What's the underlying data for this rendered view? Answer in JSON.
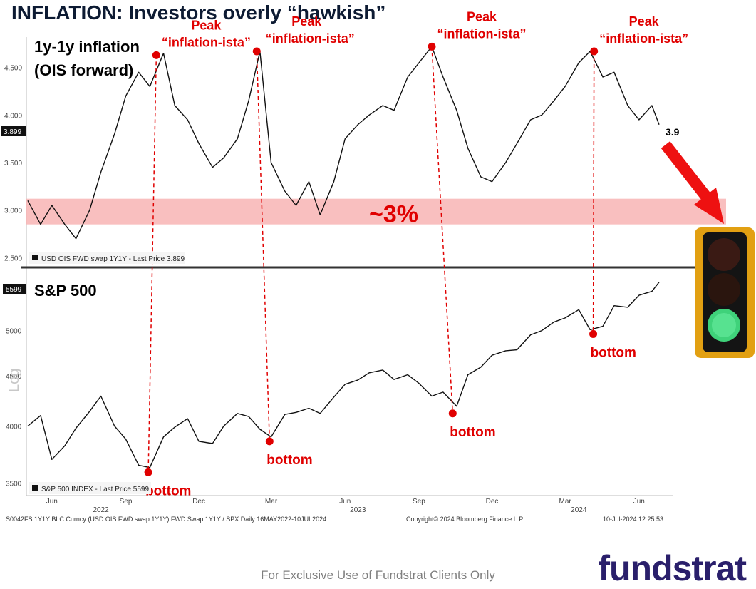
{
  "slide": {
    "title": "INFLATION: Investors overly “hawkish”",
    "footer": "For Exclusive Use of Fundstrat Clients Only",
    "brand": "fundstrat",
    "colors": {
      "accent_red": "#e00000",
      "band_pink": "#f8b4b4",
      "title_navy": "#0d1b33",
      "brand_purple": "#2a1f6b"
    }
  },
  "chart_data": [
    {
      "type": "line",
      "title": "1y-1y inflation",
      "subtitle": "(OIS forward)",
      "legend": "USD OIS FWD swap 1Y1Y - Last Price 3.899",
      "last_price_badge": "3.899",
      "last_value_label": "3.9",
      "band": {
        "from": 2.85,
        "to": 3.12,
        "label": "~3%"
      },
      "ylim": [
        2.45,
        4.82
      ],
      "yticks": [
        "4.500",
        "4.000",
        "3.500",
        "3.000",
        "2.500"
      ],
      "x": [
        "2022-05-16",
        "2022-06-01",
        "2022-06-15",
        "2022-07-01",
        "2022-07-15",
        "2022-08-01",
        "2022-08-15",
        "2022-09-01",
        "2022-09-15",
        "2022-10-01",
        "2022-10-15",
        "2022-11-01",
        "2022-11-15",
        "2022-12-01",
        "2022-12-15",
        "2023-01-01",
        "2023-01-15",
        "2023-02-01",
        "2023-02-15",
        "2023-03-01",
        "2023-03-15",
        "2023-04-01",
        "2023-04-15",
        "2023-05-01",
        "2023-05-15",
        "2023-06-01",
        "2023-06-15",
        "2023-07-01",
        "2023-07-15",
        "2023-08-01",
        "2023-08-15",
        "2023-09-01",
        "2023-09-15",
        "2023-10-01",
        "2023-10-15",
        "2023-11-01",
        "2023-11-15",
        "2023-12-01",
        "2023-12-15",
        "2024-01-01",
        "2024-01-15",
        "2024-02-01",
        "2024-02-15",
        "2024-03-01",
        "2024-03-15",
        "2024-04-01",
        "2024-04-15",
        "2024-05-01",
        "2024-05-15",
        "2024-06-01",
        "2024-06-15",
        "2024-07-01",
        "2024-07-10"
      ],
      "values": [
        3.1,
        2.85,
        3.05,
        2.85,
        2.7,
        3.0,
        3.4,
        3.8,
        4.2,
        4.45,
        4.3,
        4.65,
        4.1,
        3.95,
        3.7,
        3.45,
        3.55,
        3.75,
        4.15,
        4.67,
        3.5,
        3.2,
        3.05,
        3.3,
        2.95,
        3.3,
        3.75,
        3.9,
        4.0,
        4.1,
        4.05,
        4.4,
        4.55,
        4.72,
        4.4,
        4.05,
        3.65,
        3.35,
        3.3,
        3.5,
        3.7,
        3.95,
        4.0,
        4.15,
        4.3,
        4.55,
        4.67,
        4.4,
        4.45,
        4.1,
        3.95,
        4.1,
        3.9
      ],
      "peaks": [
        {
          "date": "2022-10-23",
          "value": 4.63,
          "label": [
            "Peak",
            "“inflation-ista”"
          ]
        },
        {
          "date": "2023-02-25",
          "value": 4.67,
          "label": [
            "Peak",
            "“inflation-ista”"
          ]
        },
        {
          "date": "2023-10-01",
          "value": 4.72,
          "label": [
            "Peak",
            "“inflation-ista”"
          ]
        },
        {
          "date": "2024-04-20",
          "value": 4.67,
          "label": [
            "Peak",
            "“inflation-ista”"
          ]
        }
      ]
    },
    {
      "type": "line",
      "title": "S&P 500",
      "legend": "S&P 500 INDEX - Last Price 5599",
      "last_price_badge": "5599",
      "axis_label": "Log",
      "scale": "log",
      "ylim": [
        3400,
        5700
      ],
      "yticks": [
        "5500",
        "5000",
        "4500",
        "4000",
        "3500"
      ],
      "x": [
        "2022-05-16",
        "2022-06-01",
        "2022-06-15",
        "2022-07-01",
        "2022-07-15",
        "2022-08-01",
        "2022-08-15",
        "2022-09-01",
        "2022-09-15",
        "2022-10-01",
        "2022-10-15",
        "2022-11-01",
        "2022-11-15",
        "2022-12-01",
        "2022-12-15",
        "2023-01-01",
        "2023-01-15",
        "2023-02-01",
        "2023-02-15",
        "2023-03-01",
        "2023-03-15",
        "2023-04-01",
        "2023-04-15",
        "2023-05-01",
        "2023-05-15",
        "2023-06-01",
        "2023-06-15",
        "2023-07-01",
        "2023-07-15",
        "2023-08-01",
        "2023-08-15",
        "2023-09-01",
        "2023-09-15",
        "2023-10-01",
        "2023-10-15",
        "2023-11-01",
        "2023-11-15",
        "2023-12-01",
        "2023-12-15",
        "2024-01-01",
        "2024-01-15",
        "2024-02-01",
        "2024-02-15",
        "2024-03-01",
        "2024-03-15",
        "2024-04-01",
        "2024-04-15",
        "2024-05-01",
        "2024-05-15",
        "2024-06-01",
        "2024-06-15",
        "2024-07-01",
        "2024-07-10"
      ],
      "values": [
        4000,
        4100,
        3700,
        3820,
        3980,
        4140,
        4290,
        4000,
        3880,
        3650,
        3630,
        3900,
        3990,
        4070,
        3860,
        3840,
        4000,
        4120,
        4090,
        3970,
        3900,
        4110,
        4130,
        4170,
        4120,
        4280,
        4410,
        4455,
        4530,
        4560,
        4460,
        4510,
        4420,
        4290,
        4330,
        4190,
        4510,
        4590,
        4720,
        4770,
        4780,
        4950,
        5000,
        5100,
        5150,
        5250,
        5010,
        5050,
        5300,
        5280,
        5430,
        5480,
        5599
      ],
      "bottoms": [
        {
          "date": "2022-10-13",
          "value": 3590,
          "label": "bottom"
        },
        {
          "date": "2023-03-13",
          "value": 3860,
          "label": "bottom"
        },
        {
          "date": "2023-10-27",
          "value": 4120,
          "label": "bottom"
        },
        {
          "date": "2024-04-19",
          "value": 4960,
          "label": "bottom"
        }
      ]
    }
  ],
  "x_axis": {
    "months": [
      "Jun",
      "Sep",
      "Dec",
      "Mar",
      "Jun",
      "Sep",
      "Dec",
      "Mar",
      "Jun"
    ],
    "month_dates": [
      "2022-06-15",
      "2022-09-15",
      "2022-12-15",
      "2023-03-15",
      "2023-06-15",
      "2023-09-15",
      "2023-12-15",
      "2024-03-15",
      "2024-06-15"
    ],
    "years": [
      "2022",
      "2023",
      "2024"
    ],
    "year_dates": [
      "2022-08-15",
      "2023-07-01",
      "2024-04-01"
    ]
  },
  "bloomberg": {
    "description": "S0042FS 1Y1Y BLC Curncy (USD OIS FWD swap 1Y1Y) FWD Swap 1Y1Y / SPX  Daily 16MAY2022-10JUL2024",
    "copyright": "Copyright© 2024 Bloomberg Finance L.P.",
    "timestamp": "10-Jul-2024 12:25:53"
  },
  "traffic_light": {
    "active": "green"
  }
}
